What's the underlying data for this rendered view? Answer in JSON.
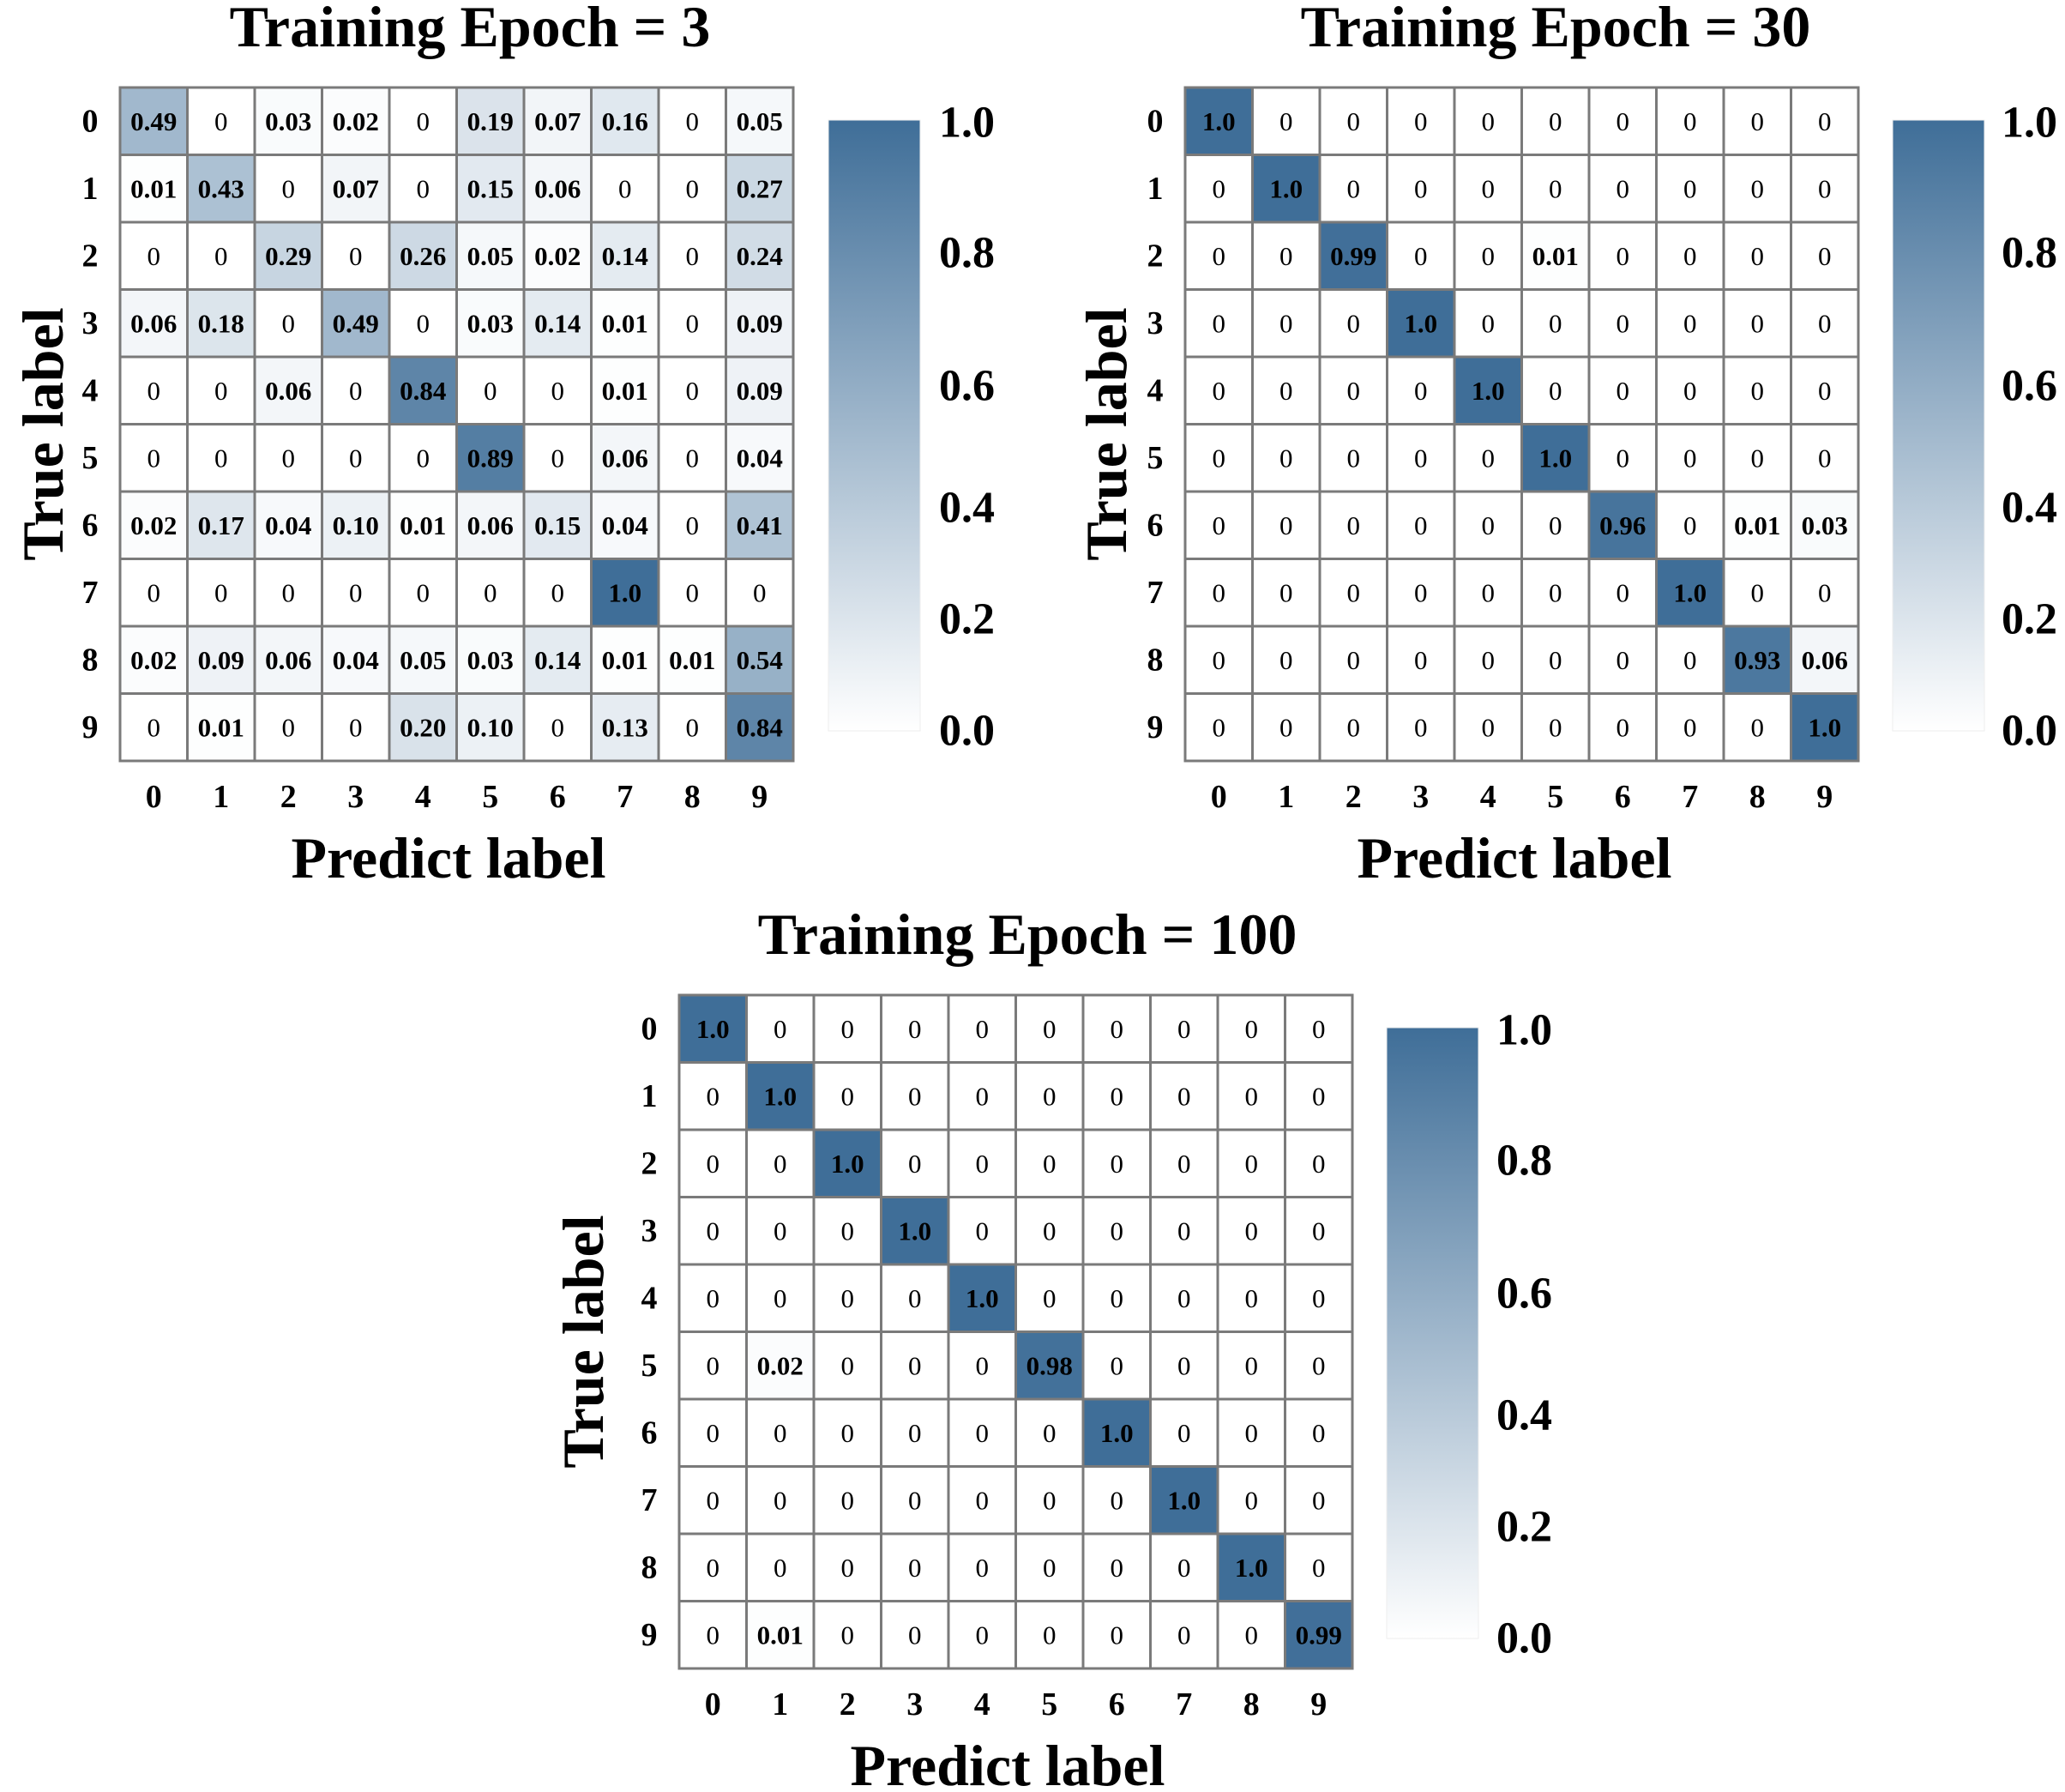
{
  "colors": {
    "high": "#3f6e98",
    "low": "#ffffff",
    "grid": "#7a7a7a"
  },
  "chart_data": [
    {
      "type": "heatmap",
      "title": "Training Epoch = 3",
      "xlabel": "Predict label",
      "ylabel": "True label",
      "x_ticks": [
        "0",
        "1",
        "2",
        "3",
        "4",
        "5",
        "6",
        "7",
        "8",
        "9"
      ],
      "y_ticks": [
        "0",
        "1",
        "2",
        "3",
        "4",
        "5",
        "6",
        "7",
        "8",
        "9"
      ],
      "colorbar_ticks": [
        "0.0",
        "0.2",
        "0.4",
        "0.6",
        "0.8",
        "1.0"
      ],
      "vmin": 0,
      "vmax": 1,
      "matrix": [
        [
          "0.49",
          "0",
          "0.03",
          "0.02",
          "0",
          "0.19",
          "0.07",
          "0.16",
          "0",
          "0.05"
        ],
        [
          "0.01",
          "0.43",
          "0",
          "0.07",
          "0",
          "0.15",
          "0.06",
          "0",
          "0",
          "0.27"
        ],
        [
          "0",
          "0",
          "0.29",
          "0",
          "0.26",
          "0.05",
          "0.02",
          "0.14",
          "0",
          "0.24"
        ],
        [
          "0.06",
          "0.18",
          "0",
          "0.49",
          "0",
          "0.03",
          "0.14",
          "0.01",
          "0",
          "0.09"
        ],
        [
          "0",
          "0",
          "0.06",
          "0",
          "0.84",
          "0",
          "0",
          "0.01",
          "0",
          "0.09"
        ],
        [
          "0",
          "0",
          "0",
          "0",
          "0",
          "0.89",
          "0",
          "0.06",
          "0",
          "0.04"
        ],
        [
          "0.02",
          "0.17",
          "0.04",
          "0.10",
          "0.01",
          "0.06",
          "0.15",
          "0.04",
          "0",
          "0.41"
        ],
        [
          "0",
          "0",
          "0",
          "0",
          "0",
          "0",
          "0",
          "1.0",
          "0",
          "0"
        ],
        [
          "0.02",
          "0.09",
          "0.06",
          "0.04",
          "0.05",
          "0.03",
          "0.14",
          "0.01",
          "0.01",
          "0.54"
        ],
        [
          "0",
          "0.01",
          "0",
          "0",
          "0.20",
          "0.10",
          "0",
          "0.13",
          "0",
          "0.84"
        ]
      ]
    },
    {
      "type": "heatmap",
      "title": "Training Epoch = 30",
      "xlabel": "Predict label",
      "ylabel": "True label",
      "x_ticks": [
        "0",
        "1",
        "2",
        "3",
        "4",
        "5",
        "6",
        "7",
        "8",
        "9"
      ],
      "y_ticks": [
        "0",
        "1",
        "2",
        "3",
        "4",
        "5",
        "6",
        "7",
        "8",
        "9"
      ],
      "colorbar_ticks": [
        "0.0",
        "0.2",
        "0.4",
        "0.6",
        "0.8",
        "1.0"
      ],
      "vmin": 0,
      "vmax": 1,
      "matrix": [
        [
          "1.0",
          "0",
          "0",
          "0",
          "0",
          "0",
          "0",
          "0",
          "0",
          "0"
        ],
        [
          "0",
          "1.0",
          "0",
          "0",
          "0",
          "0",
          "0",
          "0",
          "0",
          "0"
        ],
        [
          "0",
          "0",
          "0.99",
          "0",
          "0",
          "0.01",
          "0",
          "0",
          "0",
          "0"
        ],
        [
          "0",
          "0",
          "0",
          "1.0",
          "0",
          "0",
          "0",
          "0",
          "0",
          "0"
        ],
        [
          "0",
          "0",
          "0",
          "0",
          "1.0",
          "0",
          "0",
          "0",
          "0",
          "0"
        ],
        [
          "0",
          "0",
          "0",
          "0",
          "0",
          "1.0",
          "0",
          "0",
          "0",
          "0"
        ],
        [
          "0",
          "0",
          "0",
          "0",
          "0",
          "0",
          "0.96",
          "0",
          "0.01",
          "0.03"
        ],
        [
          "0",
          "0",
          "0",
          "0",
          "0",
          "0",
          "0",
          "1.0",
          "0",
          "0"
        ],
        [
          "0",
          "0",
          "0",
          "0",
          "0",
          "0",
          "0",
          "0",
          "0.93",
          "0.06"
        ],
        [
          "0",
          "0",
          "0",
          "0",
          "0",
          "0",
          "0",
          "0",
          "0",
          "1.0"
        ]
      ]
    },
    {
      "type": "heatmap",
      "title": "Training Epoch = 100",
      "xlabel": "Predict label",
      "ylabel": "True label",
      "x_ticks": [
        "0",
        "1",
        "2",
        "3",
        "4",
        "5",
        "6",
        "7",
        "8",
        "9"
      ],
      "y_ticks": [
        "0",
        "1",
        "2",
        "3",
        "4",
        "5",
        "6",
        "7",
        "8",
        "9"
      ],
      "colorbar_ticks": [
        "0.0",
        "0.2",
        "0.4",
        "0.6",
        "0.8",
        "1.0"
      ],
      "vmin": 0,
      "vmax": 1,
      "matrix": [
        [
          "1.0",
          "0",
          "0",
          "0",
          "0",
          "0",
          "0",
          "0",
          "0",
          "0"
        ],
        [
          "0",
          "1.0",
          "0",
          "0",
          "0",
          "0",
          "0",
          "0",
          "0",
          "0"
        ],
        [
          "0",
          "0",
          "1.0",
          "0",
          "0",
          "0",
          "0",
          "0",
          "0",
          "0"
        ],
        [
          "0",
          "0",
          "0",
          "1.0",
          "0",
          "0",
          "0",
          "0",
          "0",
          "0"
        ],
        [
          "0",
          "0",
          "0",
          "0",
          "1.0",
          "0",
          "0",
          "0",
          "0",
          "0"
        ],
        [
          "0",
          "0.02",
          "0",
          "0",
          "0",
          "0.98",
          "0",
          "0",
          "0",
          "0"
        ],
        [
          "0",
          "0",
          "0",
          "0",
          "0",
          "0",
          "1.0",
          "0",
          "0",
          "0"
        ],
        [
          "0",
          "0",
          "0",
          "0",
          "0",
          "0",
          "0",
          "1.0",
          "0",
          "0"
        ],
        [
          "0",
          "0",
          "0",
          "0",
          "0",
          "0",
          "0",
          "0",
          "1.0",
          "0"
        ],
        [
          "0",
          "0.01",
          "0",
          "0",
          "0",
          "0",
          "0",
          "0",
          "0",
          "0.99"
        ]
      ]
    }
  ]
}
